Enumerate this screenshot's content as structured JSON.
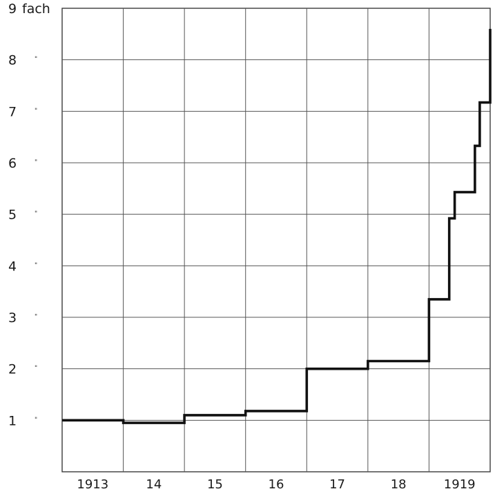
{
  "chart_data": {
    "type": "line",
    "step": true,
    "title": "",
    "xlabel": "",
    "ylabel": "",
    "y_unit_label": "fach",
    "y_ditto_mark": "\"",
    "ylim": [
      0,
      9
    ],
    "xlim": [
      1913,
      1920
    ],
    "y_ticks": [
      1,
      2,
      3,
      4,
      5,
      6,
      7,
      8,
      9
    ],
    "y_tick_labels": [
      "1",
      "2",
      "3",
      "4",
      "5",
      "6",
      "7",
      "8",
      "9"
    ],
    "x_tick_labels": [
      "1913",
      "14",
      "15",
      "16",
      "17",
      "18",
      "1919"
    ],
    "x_tick_positions": [
      1913.5,
      1914.5,
      1915.5,
      1916.5,
      1917.5,
      1918.5,
      1919.5
    ],
    "grid": true,
    "series": [
      {
        "points": [
          [
            1913.0,
            1.0
          ],
          [
            1914.0,
            1.0
          ],
          [
            1914.0,
            0.95
          ],
          [
            1915.0,
            0.95
          ],
          [
            1915.0,
            1.1
          ],
          [
            1916.0,
            1.1
          ],
          [
            1916.0,
            1.18
          ],
          [
            1917.0,
            1.18
          ],
          [
            1917.0,
            2.0
          ],
          [
            1918.0,
            2.0
          ],
          [
            1918.0,
            2.15
          ],
          [
            1919.0,
            2.15
          ],
          [
            1919.0,
            3.35
          ],
          [
            1919.33,
            3.35
          ],
          [
            1919.33,
            4.92
          ],
          [
            1919.42,
            4.92
          ],
          [
            1919.42,
            5.43
          ],
          [
            1919.75,
            5.43
          ],
          [
            1919.75,
            6.33
          ],
          [
            1919.83,
            6.33
          ],
          [
            1919.83,
            7.17
          ],
          [
            1920.0,
            7.17
          ],
          [
            1920.0,
            8.6
          ]
        ]
      }
    ]
  }
}
